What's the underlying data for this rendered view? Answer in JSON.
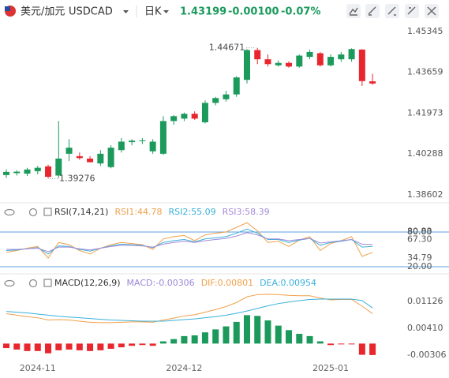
{
  "header": {
    "pair_name": "美元/加元",
    "symbol": "USDCAD",
    "period": "日K",
    "price": "1.43199",
    "change": "-0.00100",
    "change_pct": "-0.07%"
  },
  "chart_data": [
    {
      "type": "candlestick",
      "up_color": "#1b9a5c",
      "down_color": "#e8262d",
      "categories": [
        null,
        null,
        null,
        "2024-11",
        null,
        null,
        null,
        null,
        null,
        null,
        null,
        null,
        null,
        null,
        null,
        null,
        null,
        "2024-12",
        null,
        null,
        null,
        null,
        null,
        null,
        null,
        null,
        null,
        null,
        null,
        null,
        null,
        "2025-01",
        null,
        null,
        null,
        null
      ],
      "open": [
        1.3942,
        1.395,
        1.3948,
        1.3958,
        1.3978,
        1.394,
        1.403,
        1.402,
        1.401,
        1.399,
        1.3975,
        1.4045,
        1.4078,
        1.4082,
        1.404,
        1.403,
        1.4165,
        1.4175,
        1.4195,
        1.416,
        1.424,
        1.4255,
        1.4275,
        1.4335,
        1.4458,
        1.442,
        1.4395,
        1.4405,
        1.439,
        1.443,
        1.4445,
        1.4395,
        1.442,
        1.442,
        1.446,
        1.4329
      ],
      "high": [
        1.3965,
        1.3962,
        1.3972,
        1.398,
        1.3985,
        1.4165,
        1.409,
        1.4035,
        1.402,
        1.4045,
        1.4065,
        1.4095,
        1.409,
        1.4095,
        1.409,
        1.4185,
        1.419,
        1.42,
        1.4205,
        1.425,
        1.4265,
        1.429,
        1.435,
        1.4462,
        1.44671,
        1.444,
        1.4415,
        1.4412,
        1.444,
        1.446,
        1.445,
        1.444,
        1.445,
        1.4465,
        1.4462,
        1.436
      ],
      "low": [
        1.393,
        1.394,
        1.3938,
        1.3945,
        1.39276,
        1.393,
        1.4,
        1.4005,
        1.3995,
        1.398,
        1.397,
        1.4035,
        1.4065,
        1.407,
        1.403,
        1.4025,
        1.415,
        1.4165,
        1.417,
        1.4155,
        1.423,
        1.4245,
        1.4265,
        1.432,
        1.44,
        1.439,
        1.439,
        1.4385,
        1.4385,
        1.442,
        1.439,
        1.439,
        1.441,
        1.441,
        1.431,
        1.4315
      ],
      "close": [
        1.3955,
        1.3956,
        1.3965,
        1.3972,
        1.3935,
        1.401,
        1.4055,
        1.4012,
        1.3995,
        1.403,
        1.4055,
        1.408,
        1.4084,
        1.4085,
        1.408,
        1.4165,
        1.4185,
        1.4195,
        1.4175,
        1.424,
        1.426,
        1.4275,
        1.4345,
        1.4458,
        1.442,
        1.44,
        1.4405,
        1.439,
        1.4435,
        1.445,
        1.4395,
        1.443,
        1.444,
        1.4462,
        1.43299,
        1.43199
      ],
      "ylim": [
        1.3834,
        1.4567
      ],
      "yticks": [
        1.45345,
        1.43659,
        1.41973,
        1.40288,
        1.38602
      ],
      "annotations": [
        "1.44671",
        "1.39276"
      ]
    },
    {
      "type": "line",
      "title": "RSI(7,14,21)",
      "ylim": [
        10.5,
        101.8
      ],
      "yticks": [
        80.83,
        {
          "value": 80,
          "label": "80.00"
        },
        {
          "value": 67.3,
          "label": "67.30"
        },
        34.79,
        {
          "value": 20,
          "label": "20.00"
        }
      ],
      "overbought": 80,
      "oversold": 20,
      "level_color": "#5b9fe0",
      "series": [
        {
          "name": "RSI1:44.78",
          "color": "#f0a04b",
          "values": [
            45,
            48,
            52,
            55,
            35,
            62,
            58,
            48,
            42,
            52,
            58,
            62,
            60,
            58,
            50,
            68,
            72,
            74,
            65,
            75,
            78,
            80,
            88,
            96,
            82,
            62,
            64,
            55,
            66,
            72,
            48,
            60,
            65,
            72,
            38,
            44.78
          ]
        },
        {
          "name": "RSI2:55.09",
          "color": "#3ab0d9",
          "values": [
            48,
            49,
            51,
            53,
            42,
            56,
            55,
            50,
            47,
            52,
            56,
            59,
            58,
            57,
            53,
            62,
            65,
            67,
            63,
            68,
            70,
            72,
            78,
            85,
            78,
            67,
            67,
            62,
            66,
            69,
            57,
            62,
            64,
            67,
            54,
            55.09
          ]
        },
        {
          "name": "RSI3:58.39",
          "color": "#a48bd9",
          "values": [
            50,
            50,
            51,
            52,
            46,
            54,
            54,
            51,
            49,
            52,
            55,
            57,
            57,
            56,
            54,
            59,
            62,
            64,
            62,
            65,
            67,
            69,
            73,
            79,
            75,
            68,
            68,
            65,
            67,
            69,
            61,
            63,
            65,
            67,
            59,
            58.39
          ]
        }
      ]
    },
    {
      "type": "combo",
      "title": "MACD(12,26,9)",
      "ylim": [
        -0.0052,
        0.0138
      ],
      "yticks": [
        0.01126,
        {
          "value": 0.0041,
          "label": "0.00410"
        },
        -0.00306
      ],
      "up_color": "#1b9a5c",
      "down_color": "#e8262d",
      "series": [
        {
          "name": "MACD:-0.00306",
          "color": "#9b87d6",
          "type": "bar",
          "values": [
            -0.0012,
            -0.0016,
            -0.002,
            -0.002,
            -0.0026,
            -0.0018,
            -0.0016,
            -0.0018,
            -0.002,
            -0.0018,
            -0.0014,
            -0.001,
            -0.0006,
            -0.0004,
            -0.0006,
            0.0006,
            0.0012,
            0.002,
            0.0022,
            0.003,
            0.0038,
            0.0046,
            0.0058,
            0.0076,
            0.0074,
            0.0062,
            0.0048,
            0.0036,
            0.0026,
            0.002,
            0.0006,
            -0.0004,
            -0.0002,
            -0.0002,
            -0.003,
            -0.00306
          ]
        },
        {
          "name": "DIF:0.00801",
          "color": "#f0a04b",
          "type": "line",
          "values": [
            0.008,
            0.0076,
            0.0072,
            0.0069,
            0.0063,
            0.0064,
            0.0063,
            0.006,
            0.0057,
            0.0056,
            0.0056,
            0.0057,
            0.0058,
            0.0058,
            0.0057,
            0.0063,
            0.0068,
            0.0074,
            0.0077,
            0.0084,
            0.0091,
            0.0099,
            0.011,
            0.0125,
            0.0131,
            0.0132,
            0.0131,
            0.0129,
            0.0128,
            0.0128,
            0.0122,
            0.0117,
            0.0118,
            0.0118,
            0.01,
            0.00801
          ]
        },
        {
          "name": "DEA:0.00954",
          "color": "#3ab0d9",
          "type": "line",
          "values": [
            0.0086,
            0.0084,
            0.0082,
            0.0079,
            0.0076,
            0.0073,
            0.0071,
            0.0069,
            0.0067,
            0.0065,
            0.0063,
            0.0062,
            0.0061,
            0.006,
            0.006,
            0.006,
            0.0062,
            0.0064,
            0.0066,
            0.0069,
            0.0072,
            0.0076,
            0.0081,
            0.0087,
            0.0094,
            0.0101,
            0.0107,
            0.0111,
            0.0115,
            0.0118,
            0.0119,
            0.0119,
            0.0119,
            0.0119,
            0.0115,
            0.00954
          ]
        }
      ]
    }
  ]
}
